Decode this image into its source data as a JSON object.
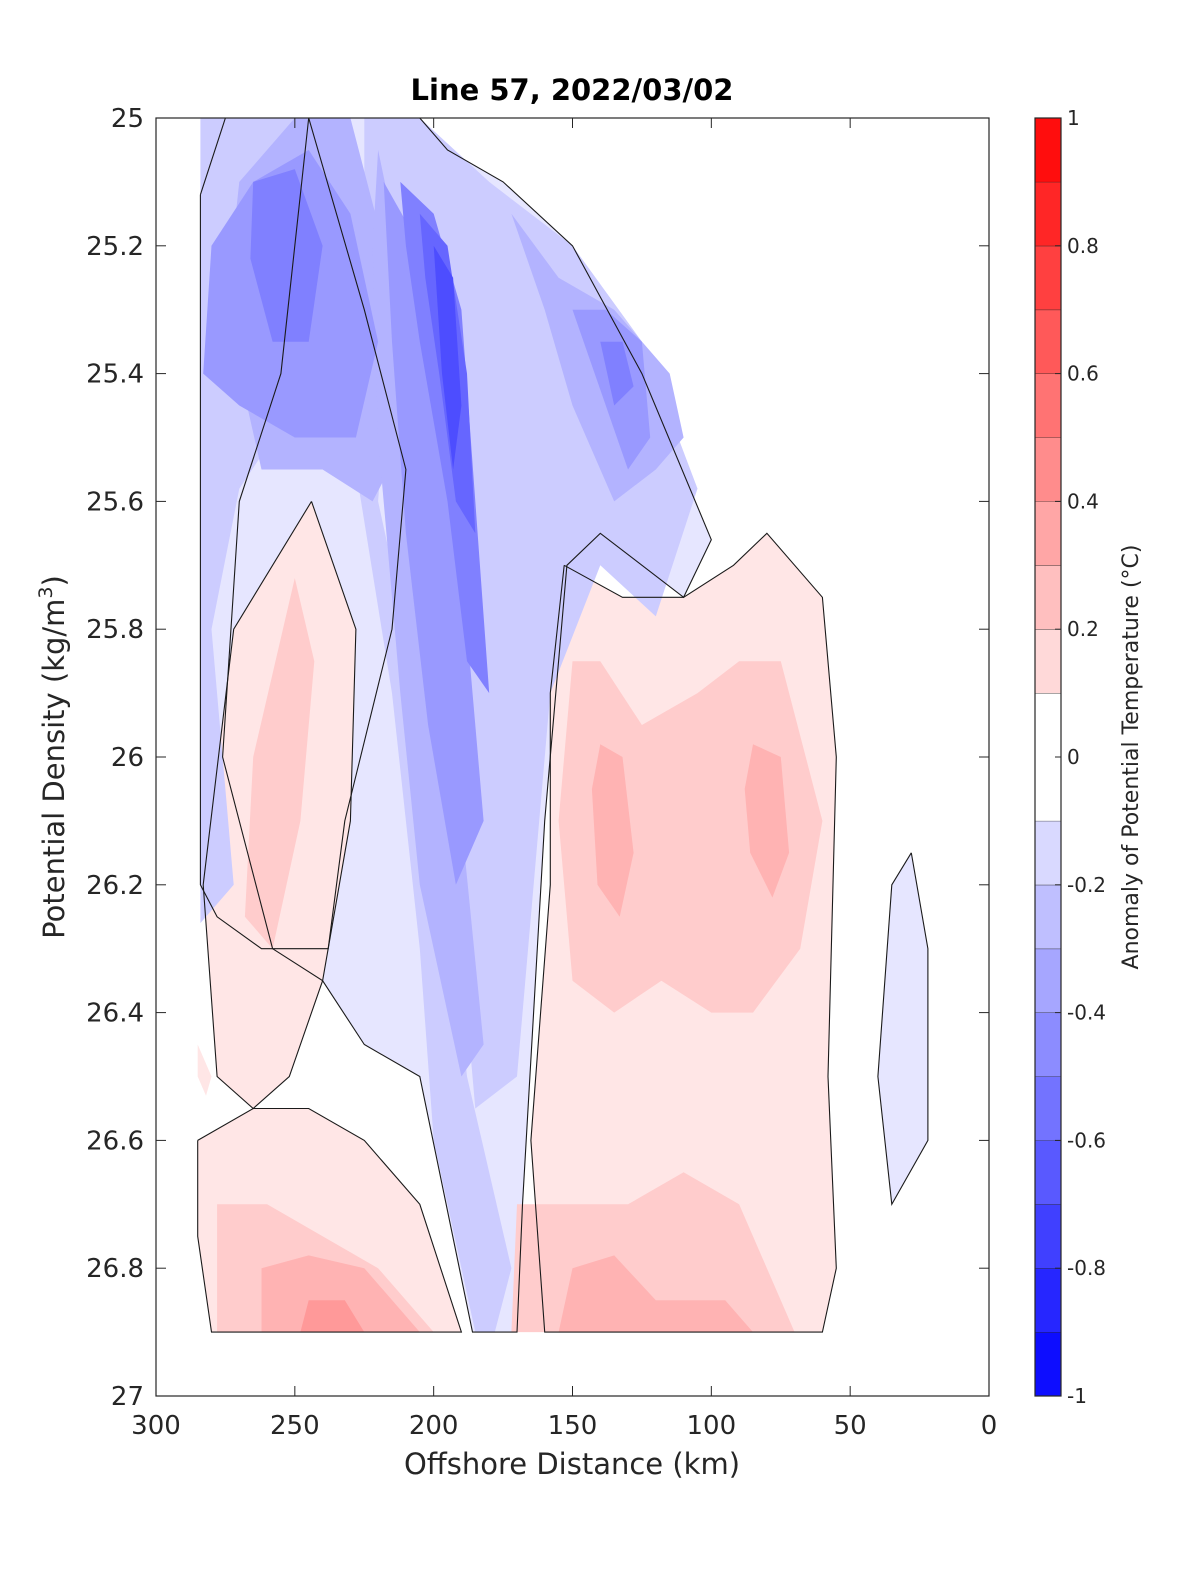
{
  "chart_data": {
    "type": "contour",
    "title": "Line 57, 2022/03/02",
    "xlabel": "Offshore Distance (km)",
    "ylabel_main": "Potential Density (kg/m",
    "ylabel_sup": "3",
    "ylabel_end": ")",
    "xlim": [
      300,
      0
    ],
    "ylim": [
      25,
      27
    ],
    "x_reversed": true,
    "y_reversed": true,
    "x_ticks": [
      300,
      250,
      200,
      150,
      100,
      50,
      0
    ],
    "x_tick_labels": [
      "300",
      "250",
      "200",
      "150",
      "100",
      "50",
      "0"
    ],
    "y_ticks": [
      25,
      25.2,
      25.4,
      25.6,
      25.8,
      26,
      26.2,
      26.4,
      26.6,
      26.8,
      27
    ],
    "y_tick_labels": [
      "25",
      "25.2",
      "25.4",
      "25.6",
      "25.8",
      "26",
      "26.2",
      "26.4",
      "26.6",
      "26.8",
      "27"
    ],
    "colorbar": {
      "label": "Anomaly of Potential Temperature (°C)",
      "range": [
        -1,
        1
      ],
      "ticks": [
        -1,
        -0.8,
        -0.6,
        -0.4,
        -0.2,
        0,
        0.2,
        0.4,
        0.6,
        0.8,
        1
      ],
      "tick_labels": [
        "-1",
        "-0.8",
        "-0.6",
        "-0.4",
        "-0.2",
        "0",
        "0.2",
        "0.4",
        "0.6",
        "0.8",
        "1"
      ],
      "levels": [
        -1,
        -0.9,
        -0.8,
        -0.7,
        -0.6,
        -0.5,
        -0.4,
        -0.3,
        -0.2,
        -0.1,
        0.1,
        0.2,
        0.3,
        0.4,
        0.5,
        0.6,
        0.7,
        0.8,
        0.9,
        1
      ],
      "colormap": "blue-white-red",
      "min_color": "#0000ff",
      "max_color": "#ff0000",
      "zero_band_color": "#ffffff"
    },
    "regions": [
      {
        "anomaly": -0.1,
        "points": [
          [
            284,
            25.12
          ],
          [
            275,
            25.0
          ],
          [
            245,
            25.0
          ],
          [
            225,
            25.3
          ],
          [
            210,
            25.55
          ],
          [
            215,
            25.8
          ],
          [
            232,
            26.1
          ],
          [
            238,
            26.3
          ],
          [
            262,
            26.3
          ],
          [
            278,
            26.25
          ],
          [
            284,
            26.2
          ]
        ]
      },
      {
        "anomaly": -0.1,
        "points": [
          [
            205,
            25.0
          ],
          [
            245,
            25.0
          ],
          [
            255,
            25.4
          ],
          [
            270,
            25.6
          ],
          [
            276,
            26.0
          ],
          [
            258,
            26.3
          ],
          [
            240,
            26.35
          ],
          [
            225,
            26.45
          ],
          [
            205,
            26.5
          ],
          [
            186,
            26.9
          ],
          [
            170,
            26.9
          ],
          [
            168,
            26.7
          ],
          [
            160,
            26.1
          ],
          [
            152,
            25.7
          ],
          [
            140,
            25.65
          ],
          [
            110,
            25.75
          ],
          [
            100,
            25.66
          ],
          [
            125,
            25.4
          ],
          [
            150,
            25.2
          ],
          [
            175,
            25.1
          ],
          [
            195,
            25.05
          ]
        ]
      },
      {
        "anomaly": -0.2,
        "points": [
          [
            284,
            25.0
          ],
          [
            240,
            25.0
          ],
          [
            235,
            25.25
          ],
          [
            250,
            25.45
          ],
          [
            270,
            25.58
          ],
          [
            280,
            25.8
          ],
          [
            272,
            26.2
          ],
          [
            284,
            26.26
          ]
        ]
      },
      {
        "anomaly": -0.2,
        "points": [
          [
            230,
            25.0
          ],
          [
            215,
            25.3
          ],
          [
            220,
            25.6
          ],
          [
            205,
            25.9
          ],
          [
            195,
            26.2
          ],
          [
            188,
            26.5
          ],
          [
            172,
            26.8
          ],
          [
            178,
            26.9
          ],
          [
            185,
            26.9
          ],
          [
            200,
            26.6
          ],
          [
            205,
            26.3
          ],
          [
            215,
            25.9
          ],
          [
            228,
            25.55
          ],
          [
            228,
            25.2
          ]
        ]
      },
      {
        "anomaly": -0.2,
        "points": [
          [
            225,
            25.0
          ],
          [
            205,
            25.0
          ],
          [
            180,
            25.1
          ],
          [
            150,
            25.2
          ],
          [
            125,
            25.35
          ],
          [
            105,
            25.58
          ],
          [
            120,
            25.78
          ],
          [
            140,
            25.7
          ],
          [
            158,
            25.9
          ],
          [
            170,
            26.5
          ],
          [
            185,
            26.55
          ],
          [
            190,
            26.3
          ],
          [
            200,
            26.0
          ],
          [
            215,
            25.7
          ],
          [
            225,
            25.3
          ]
        ]
      },
      {
        "anomaly": -0.3,
        "points": [
          [
            270,
            25.1
          ],
          [
            250,
            25.0
          ],
          [
            230,
            25.0
          ],
          [
            215,
            25.25
          ],
          [
            210,
            25.5
          ],
          [
            222,
            25.6
          ],
          [
            240,
            25.55
          ],
          [
            262,
            25.55
          ],
          [
            275,
            25.3
          ]
        ]
      },
      {
        "anomaly": -0.3,
        "points": [
          [
            220,
            25.05
          ],
          [
            208,
            25.3
          ],
          [
            210,
            25.55
          ],
          [
            200,
            25.85
          ],
          [
            190,
            26.1
          ],
          [
            182,
            26.45
          ],
          [
            190,
            26.5
          ],
          [
            205,
            26.2
          ],
          [
            212,
            25.9
          ],
          [
            220,
            25.5
          ],
          [
            222,
            25.2
          ]
        ]
      },
      {
        "anomaly": -0.3,
        "points": [
          [
            172,
            25.15
          ],
          [
            160,
            25.3
          ],
          [
            150,
            25.45
          ],
          [
            135,
            25.6
          ],
          [
            120,
            25.55
          ],
          [
            110,
            25.5
          ],
          [
            115,
            25.4
          ],
          [
            135,
            25.3
          ],
          [
            155,
            25.25
          ]
        ]
      },
      {
        "anomaly": -0.4,
        "points": [
          [
            280,
            25.2
          ],
          [
            265,
            25.1
          ],
          [
            245,
            25.05
          ],
          [
            230,
            25.15
          ],
          [
            220,
            25.35
          ],
          [
            228,
            25.5
          ],
          [
            250,
            25.5
          ],
          [
            270,
            25.45
          ],
          [
            283,
            25.4
          ]
        ]
      },
      {
        "anomaly": -0.4,
        "points": [
          [
            218,
            25.1
          ],
          [
            205,
            25.2
          ],
          [
            195,
            25.5
          ],
          [
            188,
            25.8
          ],
          [
            182,
            26.1
          ],
          [
            192,
            26.2
          ],
          [
            202,
            25.95
          ],
          [
            210,
            25.65
          ],
          [
            215,
            25.35
          ]
        ]
      },
      {
        "anomaly": -0.4,
        "points": [
          [
            150,
            25.3
          ],
          [
            142,
            25.4
          ],
          [
            130,
            25.55
          ],
          [
            122,
            25.5
          ],
          [
            125,
            25.35
          ],
          [
            138,
            25.3
          ]
        ]
      },
      {
        "anomaly": -0.5,
        "points": [
          [
            265,
            25.1
          ],
          [
            250,
            25.08
          ],
          [
            240,
            25.2
          ],
          [
            245,
            25.35
          ],
          [
            258,
            25.35
          ],
          [
            266,
            25.22
          ]
        ]
      },
      {
        "anomaly": -0.5,
        "points": [
          [
            212,
            25.1
          ],
          [
            200,
            25.15
          ],
          [
            190,
            25.3
          ],
          [
            185,
            25.6
          ],
          [
            180,
            25.9
          ],
          [
            188,
            25.85
          ],
          [
            195,
            25.6
          ],
          [
            205,
            25.35
          ],
          [
            210,
            25.2
          ]
        ]
      },
      {
        "anomaly": -0.5,
        "points": [
          [
            140,
            25.35
          ],
          [
            135,
            25.45
          ],
          [
            128,
            25.42
          ],
          [
            132,
            25.35
          ]
        ]
      },
      {
        "anomaly": -0.6,
        "points": [
          [
            205,
            25.15
          ],
          [
            195,
            25.2
          ],
          [
            188,
            25.4
          ],
          [
            185,
            25.65
          ],
          [
            192,
            25.6
          ],
          [
            198,
            25.4
          ],
          [
            203,
            25.25
          ]
        ]
      },
      {
        "anomaly": -0.7,
        "points": [
          [
            200,
            25.2
          ],
          [
            193,
            25.25
          ],
          [
            190,
            25.45
          ],
          [
            193,
            25.55
          ],
          [
            197,
            25.4
          ]
        ]
      },
      {
        "anomaly": 0.1,
        "points": [
          [
            244,
            25.6
          ],
          [
            272,
            25.8
          ],
          [
            283,
            26.2
          ],
          [
            278,
            26.5
          ],
          [
            265,
            26.55
          ],
          [
            252,
            26.5
          ],
          [
            240,
            26.35
          ],
          [
            230,
            26.1
          ],
          [
            228,
            25.8
          ]
        ]
      },
      {
        "anomaly": 0.1,
        "points": [
          [
            153,
            25.7
          ],
          [
            132,
            25.75
          ],
          [
            110,
            25.75
          ],
          [
            92,
            25.7
          ],
          [
            80,
            25.65
          ],
          [
            60,
            25.75
          ],
          [
            55,
            26.0
          ],
          [
            58,
            26.5
          ],
          [
            55,
            26.8
          ],
          [
            60,
            26.9
          ],
          [
            160,
            26.9
          ],
          [
            165,
            26.6
          ],
          [
            158,
            26.2
          ],
          [
            158,
            25.9
          ]
        ]
      },
      {
        "anomaly": 0.1,
        "points": [
          [
            285,
            26.6
          ],
          [
            265,
            26.55
          ],
          [
            245,
            26.55
          ],
          [
            225,
            26.6
          ],
          [
            205,
            26.7
          ],
          [
            190,
            26.9
          ],
          [
            280,
            26.9
          ],
          [
            285,
            26.75
          ]
        ]
      },
      {
        "anomaly": 0.2,
        "points": [
          [
            250,
            25.72
          ],
          [
            265,
            26.0
          ],
          [
            268,
            26.25
          ],
          [
            258,
            26.3
          ],
          [
            248,
            26.1
          ],
          [
            243,
            25.85
          ]
        ]
      },
      {
        "anomaly": 0.2,
        "points": [
          [
            150,
            25.85
          ],
          [
            140,
            25.85
          ],
          [
            125,
            25.95
          ],
          [
            105,
            25.9
          ],
          [
            90,
            25.85
          ],
          [
            75,
            25.85
          ],
          [
            60,
            26.1
          ],
          [
            68,
            26.3
          ],
          [
            85,
            26.4
          ],
          [
            100,
            26.4
          ],
          [
            118,
            26.35
          ],
          [
            135,
            26.4
          ],
          [
            150,
            26.35
          ],
          [
            155,
            26.1
          ]
        ]
      },
      {
        "anomaly": 0.2,
        "points": [
          [
            278,
            26.7
          ],
          [
            260,
            26.7
          ],
          [
            240,
            26.75
          ],
          [
            220,
            26.8
          ],
          [
            200,
            26.9
          ],
          [
            278,
            26.9
          ]
        ]
      },
      {
        "anomaly": 0.2,
        "points": [
          [
            170,
            26.7
          ],
          [
            150,
            26.7
          ],
          [
            130,
            26.7
          ],
          [
            110,
            26.65
          ],
          [
            90,
            26.7
          ],
          [
            70,
            26.9
          ],
          [
            172,
            26.9
          ]
        ]
      },
      {
        "anomaly": 0.3,
        "points": [
          [
            140,
            25.98
          ],
          [
            132,
            26.0
          ],
          [
            128,
            26.15
          ],
          [
            133,
            26.25
          ],
          [
            141,
            26.2
          ],
          [
            143,
            26.05
          ]
        ]
      },
      {
        "anomaly": 0.3,
        "points": [
          [
            85,
            25.98
          ],
          [
            75,
            26.0
          ],
          [
            72,
            26.15
          ],
          [
            78,
            26.22
          ],
          [
            86,
            26.15
          ],
          [
            88,
            26.05
          ]
        ]
      },
      {
        "anomaly": 0.3,
        "points": [
          [
            262,
            26.8
          ],
          [
            245,
            26.78
          ],
          [
            225,
            26.8
          ],
          [
            205,
            26.9
          ],
          [
            262,
            26.9
          ]
        ]
      },
      {
        "anomaly": 0.3,
        "points": [
          [
            150,
            26.8
          ],
          [
            135,
            26.78
          ],
          [
            120,
            26.85
          ],
          [
            95,
            26.85
          ],
          [
            85,
            26.9
          ],
          [
            155,
            26.9
          ]
        ]
      },
      {
        "anomaly": 0.4,
        "points": [
          [
            245,
            26.85
          ],
          [
            232,
            26.85
          ],
          [
            225,
            26.9
          ],
          [
            248,
            26.9
          ]
        ]
      },
      {
        "anomaly": -0.1,
        "points": [
          [
            28,
            26.15
          ],
          [
            22,
            26.3
          ],
          [
            22,
            26.6
          ],
          [
            35,
            26.7
          ],
          [
            40,
            26.5
          ],
          [
            35,
            26.2
          ]
        ]
      },
      {
        "anomaly": 0.1,
        "points": [
          [
            285,
            26.45
          ],
          [
            280,
            26.5
          ],
          [
            282,
            26.53
          ],
          [
            285,
            26.5
          ]
        ]
      }
    ]
  }
}
